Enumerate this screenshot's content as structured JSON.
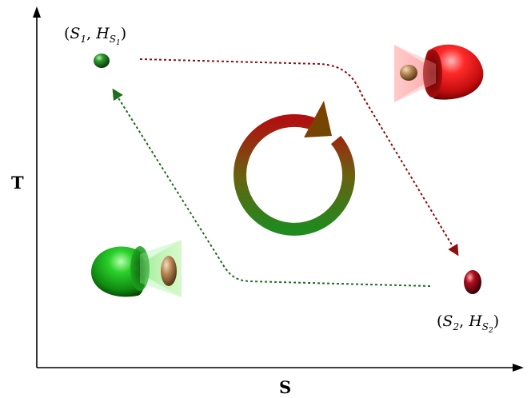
{
  "axes": {
    "x_label": "S",
    "y_label": "T"
  },
  "states": [
    {
      "id": "state-1",
      "symbol": "S",
      "index": "1",
      "field_symbol": "H",
      "field_sub_symbol": "S",
      "field_sub_index": "1",
      "color": "#2e8b2e"
    },
    {
      "id": "state-2",
      "symbol": "S",
      "index": "2",
      "field_symbol": "H",
      "field_sub_symbol": "S",
      "field_sub_index": "2",
      "color": "#b01020"
    }
  ],
  "colors": {
    "forward_path": "#8b1010",
    "return_path": "#1e6e1e",
    "cycle_start": "#b01010",
    "cycle_end": "#1f8a1f",
    "hot_body": "#e01818",
    "cold_body": "#1fa81f",
    "particle": "#b08050"
  }
}
